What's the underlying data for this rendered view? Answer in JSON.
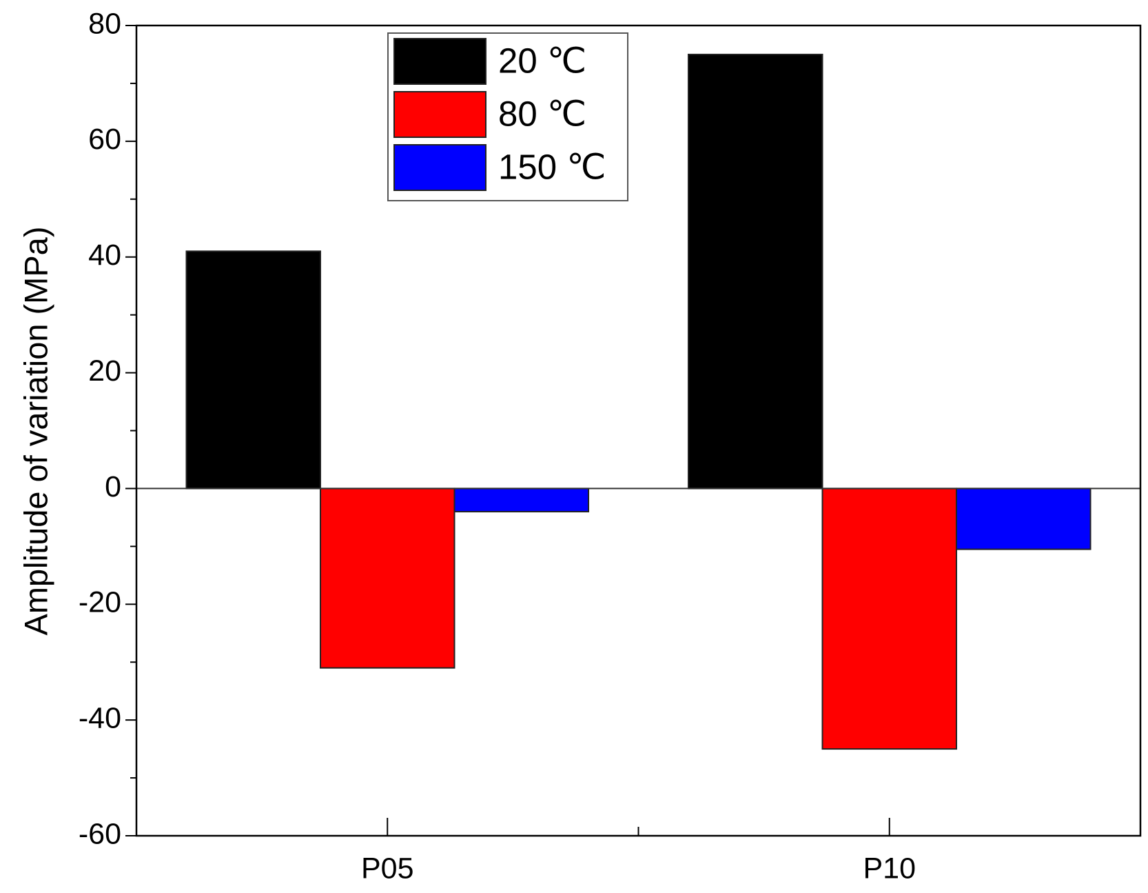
{
  "chart_data": {
    "type": "bar",
    "y_label": "Amplitude of variation (MPa)",
    "categories": [
      "P05",
      "P10"
    ],
    "series": [
      {
        "name": "20 ℃",
        "color": "#000000",
        "values": [
          41,
          75
        ]
      },
      {
        "name": "80 ℃",
        "color": "#ff0000",
        "values": [
          -31,
          -45
        ]
      },
      {
        "name": "150 ℃",
        "color": "#0000ff",
        "values": [
          -4,
          -10.5
        ]
      }
    ],
    "ylim": [
      -60,
      80
    ],
    "yticks": [
      -60,
      -40,
      -20,
      0,
      20,
      40,
      60,
      80
    ],
    "grid": false,
    "legend": "upper center"
  }
}
